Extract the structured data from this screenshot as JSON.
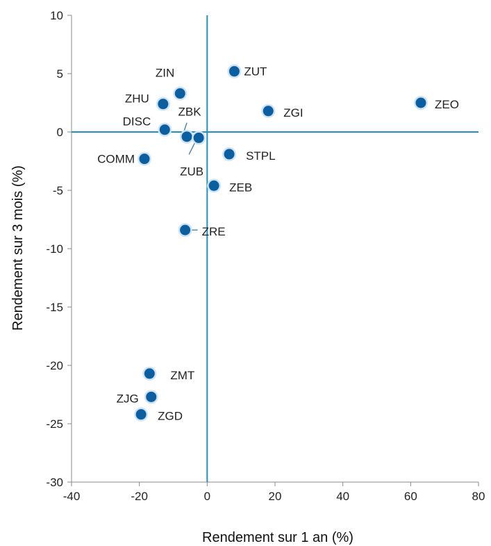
{
  "chart_data": {
    "type": "scatter",
    "title": "",
    "xlabel": "Rendement sur 1 an (%)",
    "ylabel": "Rendement sur 3 mois (%)",
    "xlim": [
      -40,
      80
    ],
    "ylim": [
      -30,
      10
    ],
    "x_ticks": [
      -40,
      -20,
      0,
      20,
      40,
      60,
      80
    ],
    "y_ticks": [
      10,
      5,
      0,
      -5,
      -10,
      -15,
      -20,
      -25,
      -30
    ],
    "grid": false,
    "legend": "none",
    "colors": {
      "point": "#0b5fa0",
      "halo": "#cfe3f2",
      "zero_line": "#1a93c7",
      "axis": "#888888"
    },
    "points": [
      {
        "label": "ZIN",
        "x": -8,
        "y": 3.3
      },
      {
        "label": "ZHU",
        "x": -13,
        "y": 2.4
      },
      {
        "label": "ZUT",
        "x": 8,
        "y": 5.2
      },
      {
        "label": "ZGI",
        "x": 18,
        "y": 1.8
      },
      {
        "label": "ZEO",
        "x": 63,
        "y": 2.5
      },
      {
        "label": "DISC",
        "x": -12.5,
        "y": 0.2
      },
      {
        "label": "ZBK",
        "x": -6,
        "y": -0.4
      },
      {
        "label": "ZUB",
        "x": -2.5,
        "y": -0.5
      },
      {
        "label": "COMM",
        "x": -18.5,
        "y": -2.3
      },
      {
        "label": "STPL",
        "x": 6.5,
        "y": -1.9
      },
      {
        "label": "ZEB",
        "x": 2,
        "y": -4.6
      },
      {
        "label": "ZRE",
        "x": -6.5,
        "y": -8.4
      },
      {
        "label": "ZMT",
        "x": -17,
        "y": -20.7
      },
      {
        "label": "ZJG",
        "x": -16.5,
        "y": -22.7
      },
      {
        "label": "ZGD",
        "x": -19.5,
        "y": -24.2
      }
    ]
  }
}
